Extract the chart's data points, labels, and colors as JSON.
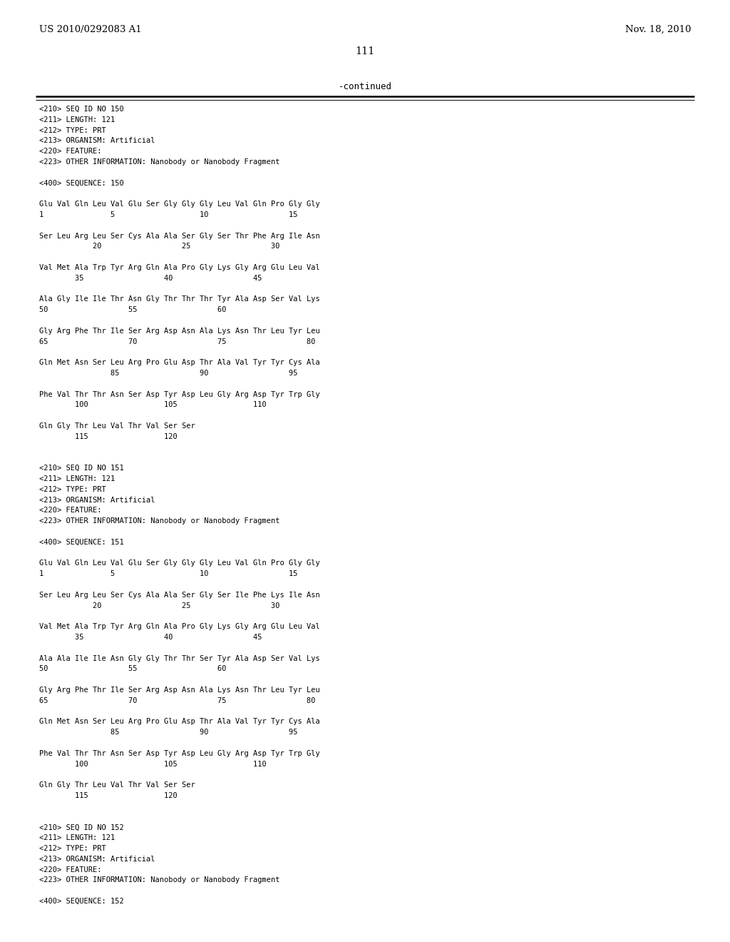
{
  "header_left": "US 2010/0292083 A1",
  "header_right": "Nov. 18, 2010",
  "page_number": "111",
  "continued_label": "-continued",
  "background_color": "#ffffff",
  "text_color": "#000000",
  "content": [
    "<210> SEQ ID NO 150",
    "<211> LENGTH: 121",
    "<212> TYPE: PRT",
    "<213> ORGANISM: Artificial",
    "<220> FEATURE:",
    "<223> OTHER INFORMATION: Nanobody or Nanobody Fragment",
    "",
    "<400> SEQUENCE: 150",
    "",
    "Glu Val Gln Leu Val Glu Ser Gly Gly Gly Leu Val Gln Pro Gly Gly",
    "1               5                   10                  15",
    "",
    "Ser Leu Arg Leu Ser Cys Ala Ala Ser Gly Ser Thr Phe Arg Ile Asn",
    "            20                  25                  30",
    "",
    "Val Met Ala Trp Tyr Arg Gln Ala Pro Gly Lys Gly Arg Glu Leu Val",
    "        35                  40                  45",
    "",
    "Ala Gly Ile Ile Thr Asn Gly Thr Thr Thr Tyr Ala Asp Ser Val Lys",
    "50                  55                  60",
    "",
    "Gly Arg Phe Thr Ile Ser Arg Asp Asn Ala Lys Asn Thr Leu Tyr Leu",
    "65                  70                  75                  80",
    "",
    "Gln Met Asn Ser Leu Arg Pro Glu Asp Thr Ala Val Tyr Tyr Cys Ala",
    "                85                  90                  95",
    "",
    "Phe Val Thr Thr Asn Ser Asp Tyr Asp Leu Gly Arg Asp Tyr Trp Gly",
    "        100                 105                 110",
    "",
    "Gln Gly Thr Leu Val Thr Val Ser Ser",
    "        115                 120",
    "",
    "",
    "<210> SEQ ID NO 151",
    "<211> LENGTH: 121",
    "<212> TYPE: PRT",
    "<213> ORGANISM: Artificial",
    "<220> FEATURE:",
    "<223> OTHER INFORMATION: Nanobody or Nanobody Fragment",
    "",
    "<400> SEQUENCE: 151",
    "",
    "Glu Val Gln Leu Val Glu Ser Gly Gly Gly Leu Val Gln Pro Gly Gly",
    "1               5                   10                  15",
    "",
    "Ser Leu Arg Leu Ser Cys Ala Ala Ser Gly Ser Ile Phe Lys Ile Asn",
    "            20                  25                  30",
    "",
    "Val Met Ala Trp Tyr Arg Gln Ala Pro Gly Lys Gly Arg Glu Leu Val",
    "        35                  40                  45",
    "",
    "Ala Ala Ile Ile Asn Gly Gly Thr Thr Ser Tyr Ala Asp Ser Val Lys",
    "50                  55                  60",
    "",
    "Gly Arg Phe Thr Ile Ser Arg Asp Asn Ala Lys Asn Thr Leu Tyr Leu",
    "65                  70                  75                  80",
    "",
    "Gln Met Asn Ser Leu Arg Pro Glu Asp Thr Ala Val Tyr Tyr Cys Ala",
    "                85                  90                  95",
    "",
    "Phe Val Thr Thr Asn Ser Asp Tyr Asp Leu Gly Arg Asp Tyr Trp Gly",
    "        100                 105                 110",
    "",
    "Gln Gly Thr Leu Val Thr Val Ser Ser",
    "        115                 120",
    "",
    "",
    "<210> SEQ ID NO 152",
    "<211> LENGTH: 121",
    "<212> TYPE: PRT",
    "<213> ORGANISM: Artificial",
    "<220> FEATURE:",
    "<223> OTHER INFORMATION: Nanobody or Nanobody Fragment",
    "",
    "<400> SEQUENCE: 152"
  ]
}
